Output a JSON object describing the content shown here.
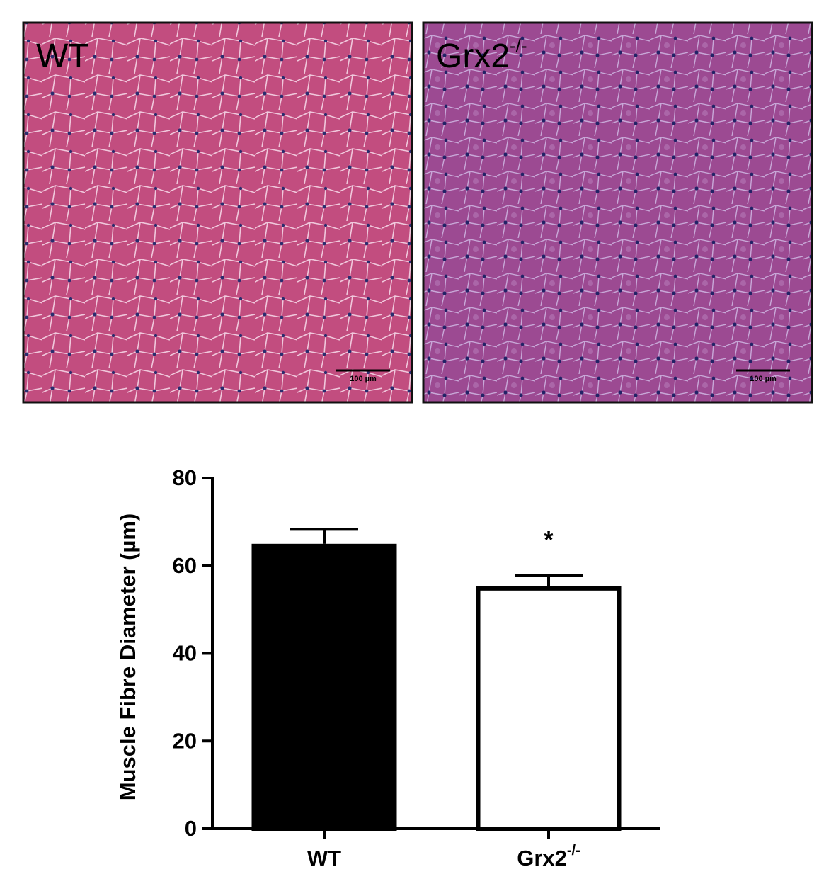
{
  "panels": [
    {
      "label": "WT",
      "label_sup": null,
      "scale_bar": "100 µm"
    },
    {
      "label": "Grx2",
      "label_sup": "-/-",
      "scale_bar": "100 µm"
    }
  ],
  "chart_data": {
    "type": "bar",
    "y_label": "Muscle Fibre Diameter  (µm)",
    "categories": [
      "WT",
      "Grx2"
    ],
    "category_superscripts": [
      null,
      "-/-"
    ],
    "values": [
      65,
      55.3
    ],
    "errors": [
      3.3,
      2.5
    ],
    "significance": [
      null,
      "*"
    ],
    "colors": [
      "#000000",
      "#ffffff"
    ],
    "ylim": [
      0,
      80
    ],
    "yticks": [
      0,
      20,
      40,
      60,
      80
    ]
  }
}
